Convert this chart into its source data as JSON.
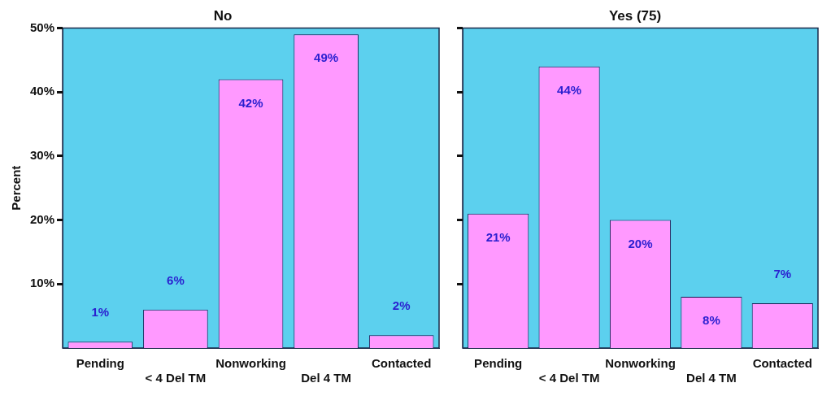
{
  "chart_data": [
    {
      "type": "bar",
      "title": "No",
      "ylabel": "Percent",
      "categories": [
        "Pending",
        "< 4 Del TM",
        "Nonworking",
        "Del 4 TM",
        "Contacted"
      ],
      "values": [
        1,
        6,
        42,
        49,
        2
      ],
      "color": "#ff99ff",
      "ylim": [
        0,
        50
      ],
      "yticks": [
        {
          "value": 10,
          "label": "10%"
        },
        {
          "value": 20,
          "label": "20%"
        },
        {
          "value": 30,
          "label": "30%"
        },
        {
          "value": 40,
          "label": "40%"
        },
        {
          "value": 50,
          "label": "50%"
        }
      ],
      "value_labels": [
        "1%",
        "6%",
        "42%",
        "49%",
        "2%"
      ],
      "grid": false,
      "legend": false
    },
    {
      "type": "bar",
      "title": "Yes (75)",
      "categories": [
        "Pending",
        "< 4 Del TM",
        "Nonworking",
        "Del 4 TM",
        "Contacted"
      ],
      "values": [
        21,
        44,
        20,
        8,
        7
      ],
      "color": "#ff99ff",
      "ylim": [
        0,
        50
      ],
      "yticks": [
        {
          "value": 10,
          "label": null
        },
        {
          "value": 20,
          "label": null
        },
        {
          "value": 30,
          "label": null
        },
        {
          "value": 40,
          "label": null
        },
        {
          "value": 50,
          "label": null
        }
      ],
      "value_labels": [
        "21%",
        "44%",
        "20%",
        "8%",
        "7%"
      ],
      "grid": false,
      "legend": false,
      "tick_labels": "x"
    }
  ]
}
